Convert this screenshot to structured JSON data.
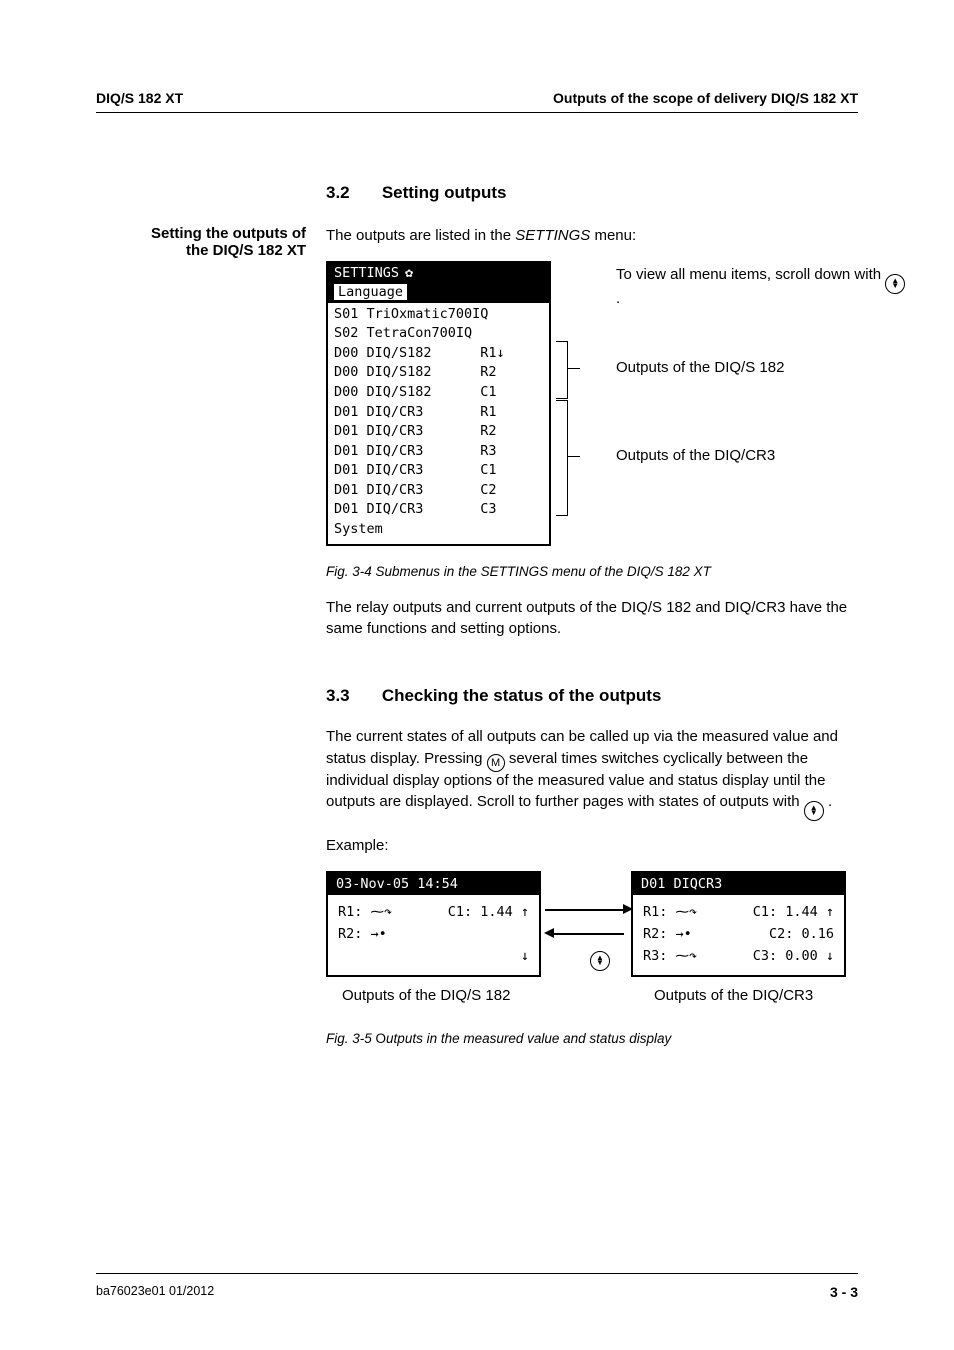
{
  "header": {
    "left": "DIQ/S 182 XT",
    "right": "Outputs of the scope of delivery DIQ/S 182 XT"
  },
  "sec1": {
    "num": "3.2",
    "title": "Setting outputs",
    "sidelabel_l1": "Setting the outputs of",
    "sidelabel_l2": "the DIQ/S 182 XT",
    "intro_a": "The outputs are listed in the ",
    "intro_b": "SETTINGS",
    "intro_c": " menu:",
    "annot1": "To view all menu items, scroll down with ",
    "annot2": "Outputs of the DIQ/S 182",
    "annot3": "Outputs of the DIQ/CR3",
    "caption": "Fig. 3-4    Submenus in the SETTINGS menu of the DIQ/S 182 XT",
    "after": "The relay outputs and current outputs of the DIQ/S 182 and DIQ/CR3 have the same functions and setting options."
  },
  "lcd1": {
    "title": "SETTINGS",
    "selected": "Language",
    "lines": [
      "S01 TriOxmatic700IQ",
      "S02 TetraCon700IQ",
      "D00 DIQ/S182      R1↓",
      "D00 DIQ/S182      R2",
      "D00 DIQ/S182      C1",
      "D01 DIQ/CR3       R1",
      "D01 DIQ/CR3       R2",
      "D01 DIQ/CR3       R3",
      "D01 DIQ/CR3       C1",
      "D01 DIQ/CR3       C2",
      "D01 DIQ/CR3       C3",
      "System"
    ]
  },
  "sec2": {
    "num": "3.3",
    "title": "Checking the status of the outputs",
    "p1a": "The current states of all outputs can be called up via the measured value and status display. Pressing ",
    "p1b": " several times switches cyclically between the individual display options of the measured value and status display until the outputs are displayed. Scroll to further pages with states of outputs with ",
    "p1c": ".",
    "example": "Example:",
    "cap_left": "Outputs of the DIQ/S 182",
    "cap_right": "Outputs of the DIQ/CR3",
    "caption": "Fig. 3-5    Outputs in the measured value and status display",
    "caption_pre": "O"
  },
  "lcd2a": {
    "title": "03-Nov-05  14:54",
    "rows": [
      {
        "l": "R1: ⁓↷",
        "r": "C1:  1.44 ↑"
      },
      {
        "l": "R2: →•",
        "r": ""
      },
      {
        "l": "",
        "r": "↓"
      }
    ]
  },
  "lcd2b": {
    "title": "D01 DIQCR3",
    "rows": [
      {
        "l": "R1: ⁓↷",
        "r": "C1:  1.44 ↑"
      },
      {
        "l": "R2: →•",
        "r": "C2:  0.16"
      },
      {
        "l": "R3: ⁓↷",
        "r": "C3:  0.00 ↓"
      }
    ]
  },
  "footer": {
    "left": "ba76023e01     01/2012",
    "right": "3 - 3"
  }
}
